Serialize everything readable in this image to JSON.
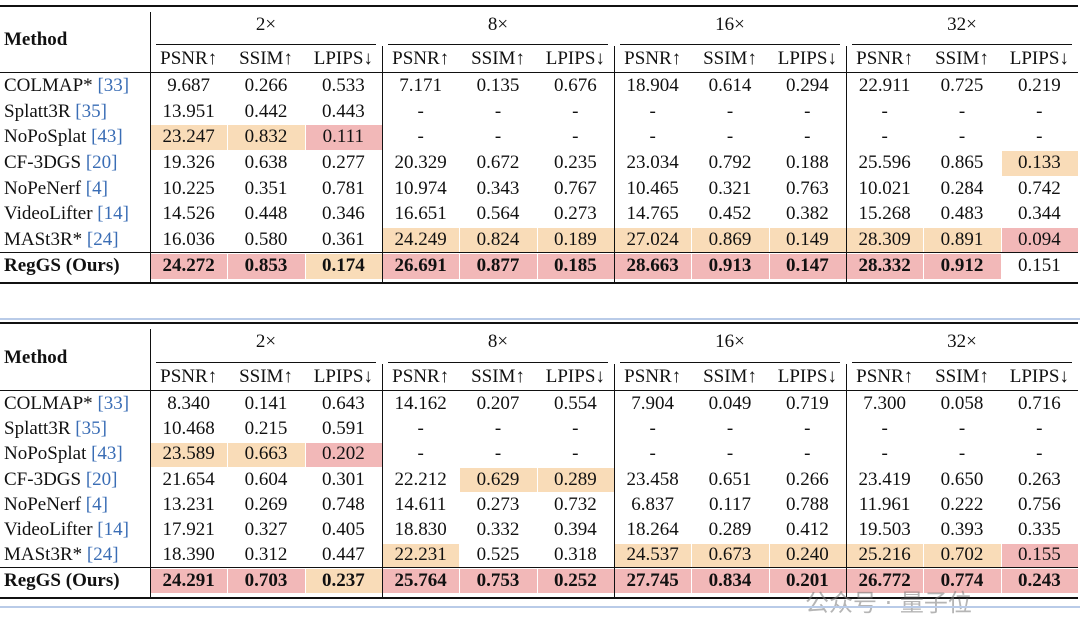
{
  "tables": [
    {
      "method_header": "Method",
      "groups": [
        "2×",
        "8×",
        "16×",
        "32×"
      ],
      "metrics": [
        "PSNR↑",
        "SSIM↑",
        "LPIPS↓"
      ],
      "rows": [
        {
          "method": "COLMAP*",
          "ref": "[33]",
          "values": [
            "9.687",
            "0.266",
            "0.533",
            "7.171",
            "0.135",
            "0.676",
            "18.904",
            "0.614",
            "0.294",
            "22.911",
            "0.725",
            "0.219"
          ]
        },
        {
          "method": "Splatt3R",
          "ref": "[35]",
          "values": [
            "13.951",
            "0.442",
            "0.443",
            "-",
            "-",
            "-",
            "-",
            "-",
            "-",
            "-",
            "-",
            "-"
          ]
        },
        {
          "method": "NoPoSplat",
          "ref": "[43]",
          "values": [
            "23.247",
            "0.832",
            "0.111",
            "-",
            "-",
            "-",
            "-",
            "-",
            "-",
            "-",
            "-",
            "-"
          ],
          "fill": [
            "#f9dcb8",
            "#f9dcb8",
            "#f2b8b8",
            null,
            null,
            null,
            null,
            null,
            null,
            null,
            null,
            null
          ]
        },
        {
          "method": "CF-3DGS",
          "ref": "[20]",
          "values": [
            "19.326",
            "0.638",
            "0.277",
            "20.329",
            "0.672",
            "0.235",
            "23.034",
            "0.792",
            "0.188",
            "25.596",
            "0.865",
            "0.133"
          ],
          "fill": [
            null,
            null,
            null,
            null,
            null,
            null,
            null,
            null,
            null,
            null,
            null,
            "#f9dcb8"
          ]
        },
        {
          "method": "NoPeNerf",
          "ref": "[4]",
          "values": [
            "10.225",
            "0.351",
            "0.781",
            "10.974",
            "0.343",
            "0.767",
            "10.465",
            "0.321",
            "0.763",
            "10.021",
            "0.284",
            "0.742"
          ]
        },
        {
          "method": "VideoLifter",
          "ref": "[14]",
          "values": [
            "14.526",
            "0.448",
            "0.346",
            "16.651",
            "0.564",
            "0.273",
            "14.765",
            "0.452",
            "0.382",
            "15.268",
            "0.483",
            "0.344"
          ]
        },
        {
          "method": "MASt3R*",
          "ref": "[24]",
          "values": [
            "16.036",
            "0.580",
            "0.361",
            "24.249",
            "0.824",
            "0.189",
            "27.024",
            "0.869",
            "0.149",
            "28.309",
            "0.891",
            "0.094"
          ],
          "fill": [
            null,
            null,
            null,
            "#f9dcb8",
            "#f9dcb8",
            "#f9dcb8",
            "#f9dcb8",
            "#f9dcb8",
            "#f9dcb8",
            "#f9dcb8",
            "#f9dcb8",
            "#f2b8b8"
          ]
        },
        {
          "method": "RegGS (Ours)",
          "values": [
            "24.272",
            "0.853",
            "0.174",
            "26.691",
            "0.877",
            "0.185",
            "28.663",
            "0.913",
            "0.147",
            "28.332",
            "0.912",
            "0.151"
          ],
          "fill": [
            "#f2b8b8",
            "#f2b8b8",
            "#f9dcb8",
            "#f2b8b8",
            "#f2b8b8",
            "#f2b8b8",
            "#f2b8b8",
            "#f2b8b8",
            "#f2b8b8",
            "#f2b8b8",
            "#f2b8b8",
            null
          ],
          "bold": [
            true,
            true,
            true,
            true,
            true,
            true,
            true,
            true,
            true,
            true,
            true,
            false
          ]
        }
      ]
    },
    {
      "method_header": "Method",
      "groups": [
        "2×",
        "8×",
        "16×",
        "32×"
      ],
      "metrics": [
        "PSNR↑",
        "SSIM↑",
        "LPIPS↓"
      ],
      "rows": [
        {
          "method": "COLMAP*",
          "ref": "[33]",
          "values": [
            "8.340",
            "0.141",
            "0.643",
            "14.162",
            "0.207",
            "0.554",
            "7.904",
            "0.049",
            "0.719",
            "7.300",
            "0.058",
            "0.716"
          ]
        },
        {
          "method": "Splatt3R",
          "ref": "[35]",
          "values": [
            "10.468",
            "0.215",
            "0.591",
            "-",
            "-",
            "-",
            "-",
            "-",
            "-",
            "-",
            "-",
            "-"
          ]
        },
        {
          "method": "NoPoSplat",
          "ref": "[43]",
          "values": [
            "23.589",
            "0.663",
            "0.202",
            "-",
            "-",
            "-",
            "-",
            "-",
            "-",
            "-",
            "-",
            "-"
          ],
          "fill": [
            "#f9dcb8",
            "#f9dcb8",
            "#f2b8b8",
            null,
            null,
            null,
            null,
            null,
            null,
            null,
            null,
            null
          ]
        },
        {
          "method": "CF-3DGS",
          "ref": "[20]",
          "values": [
            "21.654",
            "0.604",
            "0.301",
            "22.212",
            "0.629",
            "0.289",
            "23.458",
            "0.651",
            "0.266",
            "23.419",
            "0.650",
            "0.263"
          ],
          "fill": [
            null,
            null,
            null,
            null,
            "#f9dcb8",
            "#f9dcb8",
            null,
            null,
            null,
            null,
            null,
            null
          ]
        },
        {
          "method": "NoPeNerf",
          "ref": "[4]",
          "values": [
            "13.231",
            "0.269",
            "0.748",
            "14.611",
            "0.273",
            "0.732",
            "6.837",
            "0.117",
            "0.788",
            "11.961",
            "0.222",
            "0.756"
          ]
        },
        {
          "method": "VideoLifter",
          "ref": "[14]",
          "values": [
            "17.921",
            "0.327",
            "0.405",
            "18.830",
            "0.332",
            "0.394",
            "18.264",
            "0.289",
            "0.412",
            "19.503",
            "0.393",
            "0.335"
          ]
        },
        {
          "method": "MASt3R*",
          "ref": "[24]",
          "values": [
            "18.390",
            "0.312",
            "0.447",
            "22.231",
            "0.525",
            "0.318",
            "24.537",
            "0.673",
            "0.240",
            "25.216",
            "0.702",
            "0.155"
          ],
          "fill": [
            null,
            null,
            null,
            "#f9dcb8",
            null,
            null,
            "#f9dcb8",
            "#f9dcb8",
            "#f9dcb8",
            "#f9dcb8",
            "#f9dcb8",
            "#f2b8b8"
          ]
        },
        {
          "method": "RegGS (Ours)",
          "values": [
            "24.291",
            "0.703",
            "0.237",
            "25.764",
            "0.753",
            "0.252",
            "27.745",
            "0.834",
            "0.201",
            "26.772",
            "0.774",
            "0.243"
          ],
          "fill": [
            "#f2b8b8",
            "#f2b8b8",
            "#f9dcb8",
            "#f2b8b8",
            "#f2b8b8",
            "#f2b8b8",
            "#f2b8b8",
            "#f2b8b8",
            "#f2b8b8",
            "#f2b8b8",
            "#f2b8b8",
            "#f2b8b8"
          ],
          "bold": [
            true,
            true,
            true,
            true,
            true,
            true,
            true,
            true,
            true,
            true,
            true,
            true
          ]
        }
      ]
    }
  ],
  "watermark": "公众号 · 量子位"
}
